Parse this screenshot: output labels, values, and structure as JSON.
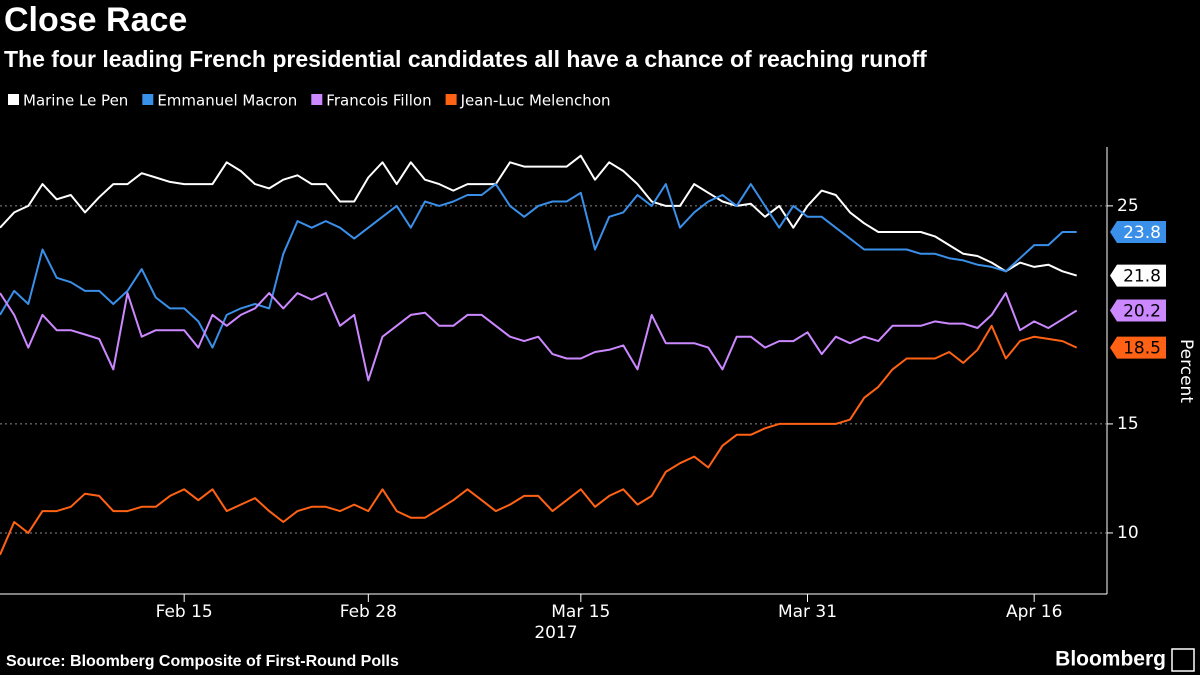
{
  "chart_data": {
    "type": "line",
    "title": "Close Race",
    "subtitle": "The four leading French presidential candidates all have a chance of reaching runoff",
    "y_label": "Percent",
    "x_label": "2017",
    "source": "Source: Bloomberg Composite of First-Round Polls",
    "brand": "Bloomberg",
    "x": [
      "2017-02-02",
      "2017-02-03",
      "2017-02-04",
      "2017-02-05",
      "2017-02-06",
      "2017-02-07",
      "2017-02-08",
      "2017-02-09",
      "2017-02-10",
      "2017-02-11",
      "2017-02-12",
      "2017-02-13",
      "2017-02-14",
      "2017-02-15",
      "2017-02-16",
      "2017-02-17",
      "2017-02-18",
      "2017-02-19",
      "2017-02-20",
      "2017-02-21",
      "2017-02-22",
      "2017-02-23",
      "2017-02-24",
      "2017-02-25",
      "2017-02-26",
      "2017-02-27",
      "2017-02-28",
      "2017-03-01",
      "2017-03-02",
      "2017-03-03",
      "2017-03-04",
      "2017-03-05",
      "2017-03-06",
      "2017-03-07",
      "2017-03-08",
      "2017-03-09",
      "2017-03-10",
      "2017-03-11",
      "2017-03-12",
      "2017-03-13",
      "2017-03-14",
      "2017-03-15",
      "2017-03-16",
      "2017-03-17",
      "2017-03-18",
      "2017-03-19",
      "2017-03-20",
      "2017-03-21",
      "2017-03-22",
      "2017-03-23",
      "2017-03-24",
      "2017-03-25",
      "2017-03-26",
      "2017-03-27",
      "2017-03-28",
      "2017-03-29",
      "2017-03-30",
      "2017-03-31",
      "2017-04-01",
      "2017-04-02",
      "2017-04-03",
      "2017-04-04",
      "2017-04-05",
      "2017-04-06",
      "2017-04-07",
      "2017-04-08",
      "2017-04-09",
      "2017-04-10",
      "2017-04-11",
      "2017-04-12",
      "2017-04-13",
      "2017-04-14",
      "2017-04-15",
      "2017-04-16",
      "2017-04-17",
      "2017-04-18",
      "2017-04-19"
    ],
    "series": [
      {
        "name": "Marine Le Pen",
        "color": "#ffffff",
        "label_text_color": "#000000",
        "values": [
          24.0,
          24.7,
          25.0,
          26.0,
          25.3,
          25.5,
          24.7,
          25.4,
          26.0,
          26.0,
          26.5,
          26.3,
          26.1,
          26.0,
          26.0,
          26.0,
          27.0,
          26.6,
          26.0,
          25.8,
          26.2,
          26.4,
          26.0,
          26.0,
          25.2,
          25.2,
          26.3,
          27.0,
          26.0,
          27.0,
          26.2,
          26.0,
          25.7,
          26.0,
          26.0,
          26.0,
          27.0,
          26.8,
          26.8,
          26.8,
          26.8,
          27.3,
          26.2,
          27.0,
          26.6,
          26.0,
          25.2,
          25.0,
          25.0,
          26.0,
          25.6,
          25.2,
          25.0,
          25.1,
          24.5,
          25.0,
          24.0,
          25.0,
          25.7,
          25.5,
          24.7,
          24.2,
          23.8,
          23.8,
          23.8,
          23.8,
          23.6,
          23.2,
          22.8,
          22.7,
          22.4,
          22.0,
          22.4,
          22.2,
          22.3,
          22.0,
          21.8
        ]
      },
      {
        "name": "Emmanuel Macron",
        "color": "#3a8fe8",
        "label_text_color": "#ffffff",
        "values": [
          20.0,
          21.1,
          20.5,
          23.0,
          21.7,
          21.5,
          21.1,
          21.1,
          20.5,
          21.1,
          22.1,
          20.8,
          20.3,
          20.3,
          19.7,
          18.5,
          20.0,
          20.3,
          20.5,
          20.3,
          22.8,
          24.3,
          24.0,
          24.3,
          24.0,
          23.5,
          24.0,
          24.5,
          25.0,
          24.0,
          25.2,
          25.0,
          25.2,
          25.5,
          25.5,
          26.0,
          25.0,
          24.5,
          25.0,
          25.2,
          25.2,
          25.6,
          23.0,
          24.5,
          24.7,
          25.5,
          25.0,
          26.0,
          24.0,
          24.7,
          25.2,
          25.5,
          25.0,
          26.0,
          25.0,
          24.0,
          25.0,
          24.5,
          24.5,
          24.0,
          23.5,
          23.0,
          23.0,
          23.0,
          23.0,
          22.8,
          22.8,
          22.6,
          22.5,
          22.3,
          22.2,
          22.0,
          22.6,
          23.2,
          23.2,
          23.8,
          23.8
        ]
      },
      {
        "name": "Francois Fillon",
        "color": "#cc88ff",
        "label_text_color": "#000000",
        "values": [
          21.0,
          20.0,
          18.5,
          20.0,
          19.3,
          19.3,
          19.1,
          18.9,
          17.5,
          21.0,
          19.0,
          19.3,
          19.3,
          19.3,
          18.5,
          20.0,
          19.5,
          20.0,
          20.3,
          21.0,
          20.3,
          21.0,
          20.7,
          21.0,
          19.5,
          20.0,
          17.0,
          19.0,
          19.5,
          20.0,
          20.1,
          19.5,
          19.5,
          20.0,
          20.0,
          19.5,
          19.0,
          18.8,
          19.0,
          18.2,
          18.0,
          18.0,
          18.3,
          18.4,
          18.6,
          17.5,
          20.0,
          18.7,
          18.7,
          18.7,
          18.5,
          17.5,
          19.0,
          19.0,
          18.5,
          18.8,
          18.8,
          19.2,
          18.2,
          19.0,
          18.7,
          19.0,
          18.8,
          19.5,
          19.5,
          19.5,
          19.7,
          19.6,
          19.6,
          19.4,
          20.0,
          21.0,
          19.3,
          19.7,
          19.4,
          19.8,
          20.2
        ]
      },
      {
        "name": "Jean-Luc Melenchon",
        "color": "#ff6214",
        "label_text_color": "#000000",
        "values": [
          9.0,
          10.5,
          10.0,
          11.0,
          11.0,
          11.2,
          11.8,
          11.7,
          11.0,
          11.0,
          11.2,
          11.2,
          11.7,
          12.0,
          11.5,
          12.0,
          11.0,
          11.3,
          11.6,
          11.0,
          10.5,
          11.0,
          11.2,
          11.2,
          11.0,
          11.3,
          11.0,
          12.0,
          11.0,
          10.7,
          10.7,
          11.1,
          11.5,
          12.0,
          11.5,
          11.0,
          11.3,
          11.7,
          11.7,
          11.0,
          11.5,
          12.0,
          11.2,
          11.7,
          12.0,
          11.3,
          11.7,
          12.8,
          13.2,
          13.5,
          13.0,
          14.0,
          14.5,
          14.5,
          14.8,
          15.0,
          15.0,
          15.0,
          15.0,
          15.0,
          15.2,
          16.2,
          16.7,
          17.5,
          18.0,
          18.0,
          18.0,
          18.3,
          17.8,
          18.4,
          19.5,
          18.0,
          18.8,
          19.0,
          18.9,
          18.8,
          18.5
        ]
      }
    ],
    "xlim": [
      "2017-02-02",
      "2017-04-21"
    ],
    "xticks": [
      {
        "value": "2017-02-15",
        "label": "Feb 15"
      },
      {
        "value": "2017-02-28",
        "label": "Feb 28"
      },
      {
        "value": "2017-03-15",
        "label": "Mar 15"
      },
      {
        "value": "2017-03-31",
        "label": "Mar 31"
      },
      {
        "value": "2017-04-16",
        "label": "Apr 16"
      }
    ],
    "ylim": [
      7.2,
      27.7
    ],
    "yticks": [
      10,
      15,
      25
    ],
    "grid": true,
    "y_axis_side": "right",
    "legend": "top-left"
  }
}
